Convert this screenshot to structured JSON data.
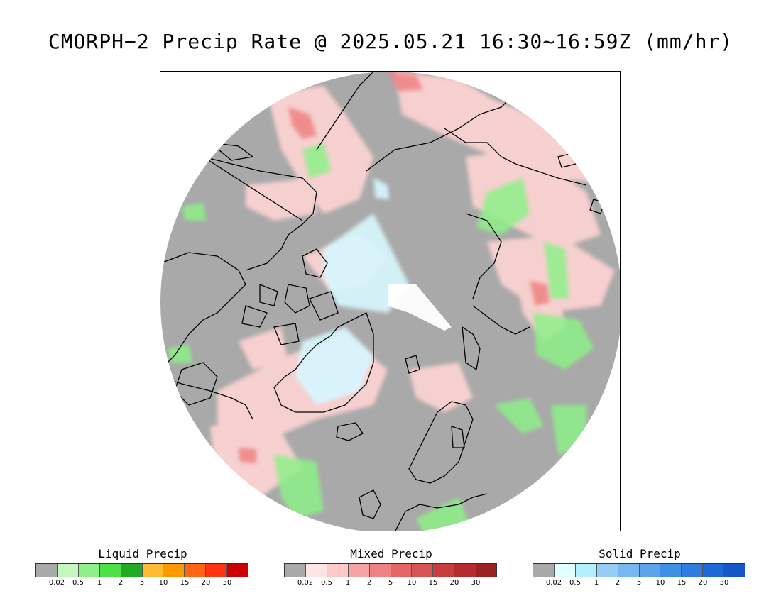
{
  "title": "CMORPH−2 Precip Rate @ 2025.05.21 16:30~16:59Z (mm/hr)",
  "map": {
    "projection": "north-polar-stereographic",
    "background_color": "#a9a9a9",
    "coastline_color": "#000000"
  },
  "legends": [
    {
      "id": "liquid",
      "title": "Liquid Precip",
      "colors": [
        "#a9a9a9",
        "#c4f7c0",
        "#8ef088",
        "#4fe048",
        "#22aa22",
        "#ffbb33",
        "#ff9900",
        "#ff6611",
        "#ff3311",
        "#cc0000"
      ],
      "ticks": [
        "0.02",
        "0.5",
        "1",
        "2",
        "5",
        "10",
        "15",
        "20",
        "30"
      ]
    },
    {
      "id": "mixed",
      "title": "Mixed Precip",
      "colors": [
        "#a9a9a9",
        "#ffe4e4",
        "#ffc8c8",
        "#f7a3a3",
        "#ee8282",
        "#e46666",
        "#d65454",
        "#c83e3e",
        "#b52c2c",
        "#9c2222"
      ],
      "ticks": [
        "0.02",
        "0.5",
        "1",
        "2",
        "5",
        "10",
        "15",
        "20",
        "30"
      ]
    },
    {
      "id": "solid",
      "title": "Solid Precip",
      "colors": [
        "#a9a9a9",
        "#e2ffff",
        "#b3f0ff",
        "#95cdf7",
        "#78b8f0",
        "#5ba3ea",
        "#3f8fe3",
        "#2f7ce0",
        "#1f68d8",
        "#1656c8"
      ],
      "ticks": [
        "0.02",
        "0.5",
        "1",
        "2",
        "5",
        "10",
        "15",
        "20",
        "30"
      ]
    }
  ]
}
